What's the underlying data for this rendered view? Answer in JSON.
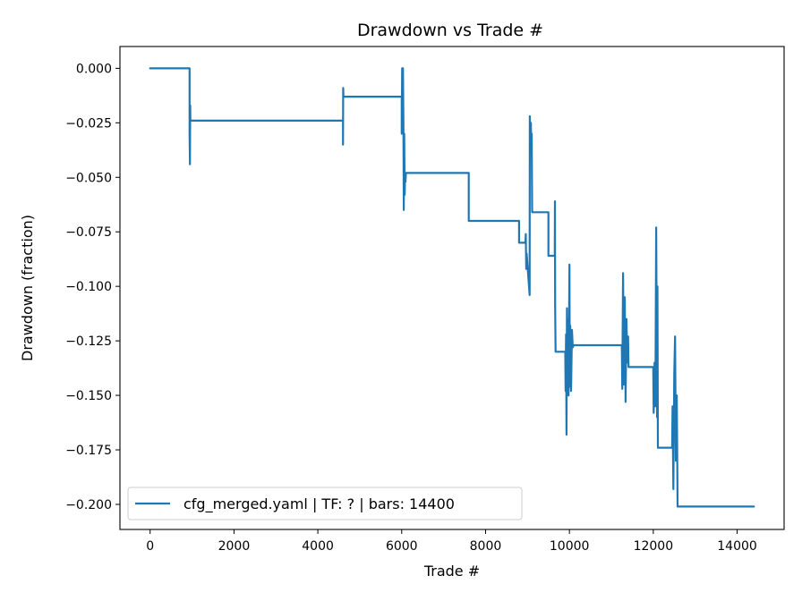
{
  "chart_data": {
    "type": "line",
    "title": "Drawdown vs Trade #",
    "xlabel": "Trade #",
    "ylabel": "Drawdown (fraction)",
    "xlim": [
      -720,
      15120
    ],
    "ylim": [
      -0.2115,
      0.01
    ],
    "xticks": [
      0,
      2000,
      4000,
      6000,
      8000,
      10000,
      12000,
      14000
    ],
    "xtick_labels": [
      "0",
      "2000",
      "4000",
      "6000",
      "8000",
      "10000",
      "12000",
      "14000"
    ],
    "yticks": [
      0.0,
      -0.025,
      -0.05,
      -0.075,
      -0.1,
      -0.125,
      -0.15,
      -0.175,
      -0.2
    ],
    "ytick_labels": [
      "0.000",
      "−0.025",
      "−0.050",
      "−0.075",
      "−0.100",
      "−0.125",
      "−0.150",
      "−0.175",
      "−0.200"
    ],
    "grid": false,
    "legend_position": "lower-left",
    "series": [
      {
        "name": "cfg_merged.yaml | TF: ? | bars: 14400",
        "color": "#1f77b4",
        "x": [
          0,
          940,
          940,
          950,
          955,
          960,
          965,
          4600,
          4600,
          4605,
          4610,
          6000,
          6000,
          6010,
          6020,
          6030,
          6040,
          6050,
          6060,
          6070,
          6080,
          6090,
          6100,
          7600,
          7600,
          8800,
          8800,
          8950,
          8960,
          8970,
          8980,
          9050,
          9055,
          9070,
          9080,
          9090,
          9100,
          9110,
          9150,
          9150,
          9500,
          9500,
          9650,
          9655,
          9660,
          9670,
          9700,
          9900,
          9910,
          9920,
          9930,
          9940,
          9950,
          9960,
          9980,
          10000,
          10010,
          10020,
          10040,
          10060,
          10080,
          10100,
          10110,
          11250,
          11260,
          11280,
          11300,
          11320,
          11340,
          11360,
          11380,
          11400,
          11410,
          12000,
          12010,
          12030,
          12050,
          12070,
          12090,
          12100,
          12110,
          12450,
          12460,
          12480,
          12500,
          12520,
          12540,
          12560,
          12580,
          14400
        ],
        "y": [
          0.0,
          0.0,
          -0.03,
          -0.044,
          -0.017,
          -0.024,
          -0.024,
          -0.024,
          -0.035,
          -0.009,
          -0.013,
          -0.013,
          -0.03,
          0.0,
          -0.028,
          0.0,
          -0.025,
          -0.065,
          -0.03,
          -0.058,
          -0.05,
          -0.052,
          -0.048,
          -0.048,
          -0.07,
          -0.07,
          -0.08,
          -0.08,
          -0.076,
          -0.092,
          -0.085,
          -0.104,
          -0.022,
          -0.038,
          -0.025,
          -0.036,
          -0.03,
          -0.066,
          -0.066,
          -0.066,
          -0.066,
          -0.086,
          -0.086,
          -0.061,
          -0.108,
          -0.13,
          -0.13,
          -0.13,
          -0.148,
          -0.122,
          -0.168,
          -0.11,
          -0.14,
          -0.115,
          -0.15,
          -0.09,
          -0.146,
          -0.118,
          -0.148,
          -0.12,
          -0.128,
          -0.127,
          -0.127,
          -0.127,
          -0.147,
          -0.094,
          -0.145,
          -0.105,
          -0.153,
          -0.115,
          -0.135,
          -0.123,
          -0.137,
          -0.137,
          -0.158,
          -0.135,
          -0.155,
          -0.073,
          -0.16,
          -0.1,
          -0.174,
          -0.174,
          -0.155,
          -0.193,
          -0.14,
          -0.123,
          -0.18,
          -0.15,
          -0.201,
          -0.201
        ]
      }
    ]
  }
}
